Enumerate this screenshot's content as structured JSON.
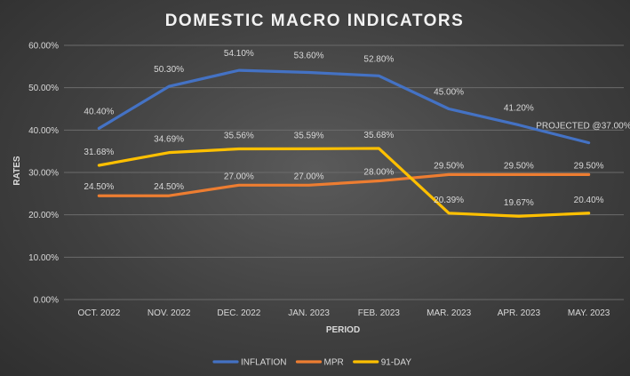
{
  "chart_data": {
    "type": "line",
    "title": "DOMESTIC MACRO INDICATORS",
    "xlabel": "PERIOD",
    "ylabel": "RATES",
    "ylim": [
      0,
      60
    ],
    "y_ticks": [
      "0.00%",
      "10.00%",
      "20.00%",
      "30.00%",
      "40.00%",
      "50.00%",
      "60.00%"
    ],
    "grid": true,
    "legend_position": "bottom",
    "categories": [
      "OCT. 2022",
      "NOV. 2022",
      "DEC. 2022",
      "JAN. 2023",
      "FEB. 2023",
      "MAR. 2023",
      "APR. 2023",
      "MAY. 2023"
    ],
    "series": [
      {
        "name": "INFLATION",
        "color": "#4472C4",
        "values": [
          40.4,
          50.3,
          54.1,
          53.6,
          52.8,
          45.0,
          41.2,
          37.0
        ],
        "labels": [
          "40.40%",
          "50.30%",
          "54.10%",
          "53.60%",
          "52.80%",
          "45.00%",
          "41.20%",
          "PROJECTED @37.00%"
        ]
      },
      {
        "name": "MPR",
        "color": "#ED7D31",
        "values": [
          24.5,
          24.5,
          27.0,
          27.0,
          28.0,
          29.5,
          29.5,
          29.5
        ],
        "labels": [
          "24.50%",
          "24.50%",
          "27.00%",
          "27.00%",
          "28.00%",
          "29.50%",
          "29.50%",
          "29.50%"
        ]
      },
      {
        "name": "91-DAY",
        "color": "#FFC000",
        "values": [
          31.68,
          34.69,
          35.56,
          35.59,
          35.68,
          20.39,
          19.67,
          20.4
        ],
        "labels": [
          "31.68%",
          "34.69%",
          "35.56%",
          "35.59%",
          "35.68%",
          "20.39%",
          "19.67%",
          "20.40%"
        ]
      }
    ]
  }
}
